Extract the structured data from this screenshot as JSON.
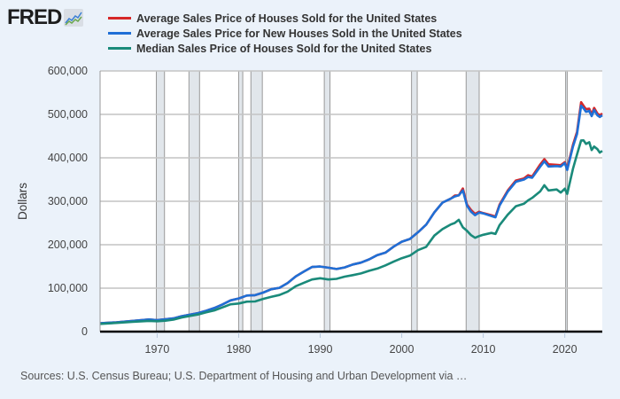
{
  "header": {
    "logo_text": "FRED",
    "logo_icon": "line-chart-icon"
  },
  "footer": {
    "source": "Sources: U.S. Census Bureau; U.S. Department of Housing and Urban Development via …"
  },
  "chart_data": {
    "type": "line",
    "title": "",
    "xlabel": "",
    "ylabel": "Dollars",
    "xlim": [
      1963,
      2024.6
    ],
    "ylim": [
      0,
      600000
    ],
    "yticks": [
      0,
      100000,
      200000,
      300000,
      400000,
      500000,
      600000
    ],
    "ytick_labels": [
      "0",
      "100,000",
      "200,000",
      "300,000",
      "400,000",
      "500,000",
      "600,000"
    ],
    "xticks": [
      1970,
      1980,
      1990,
      2000,
      2010,
      2020
    ],
    "xtick_labels": [
      "1970",
      "1980",
      "1990",
      "2000",
      "2010",
      "2020"
    ],
    "grid": true,
    "legend_position": "top-left",
    "recessions": [
      [
        1969.9,
        1970.9
      ],
      [
        1973.9,
        1975.2
      ],
      [
        1980.0,
        1980.5
      ],
      [
        1981.5,
        1982.9
      ],
      [
        1990.5,
        1991.2
      ],
      [
        2001.2,
        2001.9
      ],
      [
        2007.9,
        2009.5
      ],
      [
        2020.1,
        2020.3
      ]
    ],
    "series": [
      {
        "name": "Average Sales Price of Houses Sold for the United States",
        "color": "#d62728",
        "x": [
          1963,
          1965,
          1967,
          1969,
          1970,
          1971,
          1972,
          1973,
          1974,
          1975,
          1976,
          1977,
          1978,
          1979,
          1980,
          1981,
          1982,
          1983,
          1984,
          1985,
          1986,
          1987,
          1988,
          1989,
          1990,
          1991,
          1992,
          1993,
          1994,
          1995,
          1996,
          1997,
          1998,
          1999,
          2000,
          2001,
          2002,
          2003,
          2004,
          2005,
          2006,
          2006.5,
          2007,
          2007.5,
          2008,
          2008.5,
          2009,
          2009.5,
          2010,
          2011,
          2011.5,
          2012,
          2013,
          2014,
          2015,
          2015.5,
          2016,
          2017,
          2017.5,
          2018,
          2019,
          2019.5,
          2020,
          2020.3,
          2021,
          2021.5,
          2022,
          2022.3,
          2022.6,
          2023,
          2023.3,
          2023.6,
          2024,
          2024.3,
          2024.6
        ],
        "values": [
          19300,
          21500,
          24600,
          27900,
          26600,
          28300,
          30500,
          35500,
          38900,
          42600,
          48000,
          54200,
          62500,
          71800,
          76400,
          83000,
          83900,
          89800,
          97600,
          100800,
          111900,
          127200,
          138300,
          148800,
          149800,
          147200,
          144100,
          147700,
          154500,
          158700,
          166400,
          176200,
          181900,
          195600,
          207000,
          213200,
          228700,
          246300,
          274500,
          297000,
          305900,
          313000,
          313600,
          329400,
          292600,
          280000,
          270900,
          276000,
          272900,
          267900,
          265000,
          292200,
          324500,
          347700,
          352700,
          360000,
          357000,
          384900,
          397000,
          385000,
          383900,
          383000,
          390000,
          376000,
          430000,
          460000,
          528000,
          520000,
          512000,
          513000,
          500000,
          515000,
          502000,
          498000,
          502000
        ]
      },
      {
        "name": "Average Sales Price for New Houses Sold in the United States",
        "color": "#1f6fd6",
        "x": [
          1963,
          1965,
          1967,
          1969,
          1970,
          1971,
          1972,
          1973,
          1974,
          1975,
          1976,
          1977,
          1978,
          1979,
          1980,
          1981,
          1982,
          1983,
          1984,
          1985,
          1986,
          1987,
          1988,
          1989,
          1990,
          1991,
          1992,
          1993,
          1994,
          1995,
          1996,
          1997,
          1998,
          1999,
          2000,
          2001,
          2002,
          2003,
          2004,
          2005,
          2006,
          2006.5,
          2007,
          2007.5,
          2008,
          2008.5,
          2009,
          2009.5,
          2010,
          2011,
          2011.5,
          2012,
          2013,
          2014,
          2015,
          2015.5,
          2016,
          2017,
          2017.5,
          2018,
          2019,
          2019.5,
          2020,
          2020.3,
          2021,
          2021.5,
          2022,
          2022.3,
          2022.6,
          2023,
          2023.3,
          2023.6,
          2024,
          2024.3,
          2024.6
        ],
        "values": [
          19300,
          21500,
          24600,
          27900,
          26600,
          28300,
          30500,
          35500,
          38900,
          42600,
          48000,
          54200,
          62500,
          71800,
          76400,
          83000,
          83900,
          89800,
          97600,
          100800,
          111900,
          127200,
          138300,
          148800,
          149800,
          147200,
          144100,
          147700,
          154500,
          158700,
          166400,
          176200,
          181900,
          195600,
          207000,
          213200,
          228700,
          246300,
          274500,
          297000,
          305900,
          311000,
          313600,
          325000,
          290000,
          276000,
          268000,
          274000,
          272000,
          266000,
          263000,
          290000,
          322000,
          345000,
          350000,
          356000,
          354000,
          380000,
          392000,
          380000,
          381000,
          380000,
          388000,
          372000,
          426000,
          455000,
          520000,
          514000,
          506000,
          508000,
          496000,
          510000,
          498000,
          494000,
          498000
        ]
      },
      {
        "name": "Median Sales Price of Houses Sold for the United States",
        "color": "#1a8a7a",
        "x": [
          1963,
          1965,
          1967,
          1969,
          1970,
          1971,
          1972,
          1973,
          1974,
          1975,
          1976,
          1977,
          1978,
          1979,
          1980,
          1981,
          1982,
          1983,
          1984,
          1985,
          1986,
          1987,
          1988,
          1989,
          1990,
          1991,
          1992,
          1993,
          1994,
          1995,
          1996,
          1997,
          1998,
          1999,
          2000,
          2001,
          2002,
          2003,
          2004,
          2005,
          2006,
          2006.5,
          2007,
          2007.5,
          2008,
          2008.5,
          2009,
          2009.5,
          2010,
          2011,
          2011.5,
          2012,
          2013,
          2014,
          2015,
          2015.5,
          2016,
          2017,
          2017.5,
          2018,
          2019,
          2019.5,
          2020,
          2020.3,
          2021,
          2021.5,
          2022,
          2022.3,
          2022.6,
          2023,
          2023.3,
          2023.6,
          2024,
          2024.3,
          2024.6
        ],
        "values": [
          17800,
          20000,
          22700,
          24700,
          23900,
          25200,
          27600,
          32500,
          35900,
          39300,
          44200,
          48800,
          55700,
          62900,
          64600,
          68900,
          69300,
          75300,
          79900,
          84300,
          92000,
          104500,
          112500,
          120000,
          122900,
          120000,
          121500,
          126500,
          130000,
          133900,
          140000,
          145000,
          152500,
          161000,
          169000,
          175000,
          187600,
          195000,
          221000,
          236000,
          246500,
          250000,
          257400,
          240000,
          232000,
          222000,
          216000,
          220000,
          222900,
          227200,
          225000,
          245200,
          268900,
          288500,
          294200,
          302000,
          307800,
          323100,
          337000,
          325000,
          327100,
          320000,
          329000,
          317000,
          375000,
          408000,
          440000,
          440300,
          432000,
          436000,
          418000,
          426000,
          420000,
          412000,
          416000
        ]
      }
    ]
  }
}
